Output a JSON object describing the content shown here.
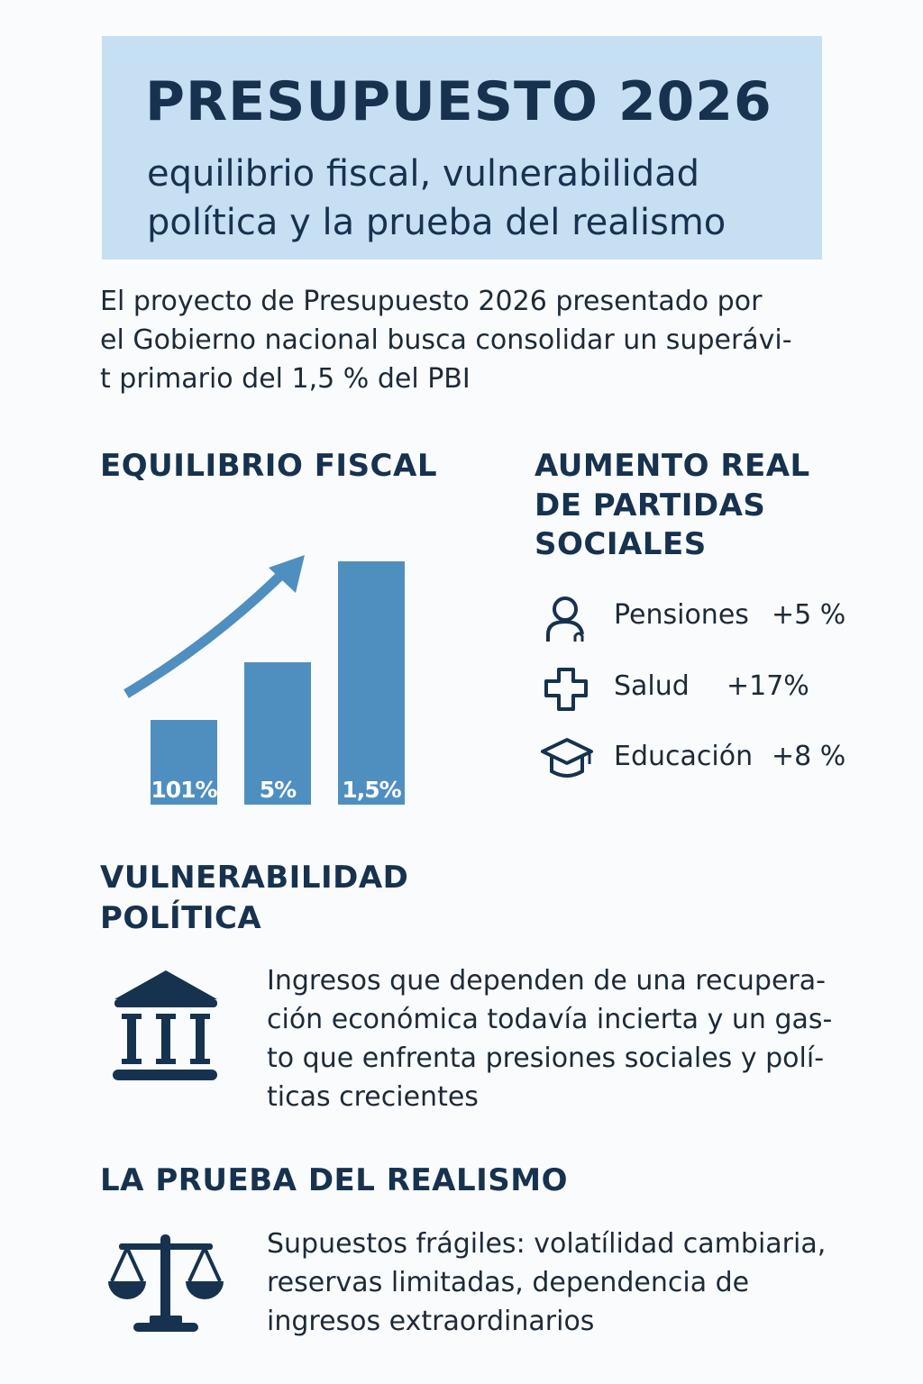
{
  "header": {
    "title": "PRESUPUESTO 2026",
    "subtitle_lines": [
      "equilibrio fiscal, vulnerabilidad",
      "política y la prueba del realismo"
    ]
  },
  "intro": {
    "lines": [
      "El proyecto de Presupuesto 2026 presentado por",
      "el Gobierno nacional busca consolidar un superávi-",
      "t primario del 1,5 % del PBI"
    ]
  },
  "equilibrio": {
    "heading": "EQUILIBRIO FISCAL",
    "arrow_icon": "trend-up-arrow-icon"
  },
  "chart_data": {
    "type": "bar",
    "bar_labels": [
      "101%",
      "5%",
      "1,5%"
    ],
    "trend": "increasing",
    "bar_color": "#4f8fc0"
  },
  "social": {
    "heading_lines": [
      "AUMENTO REAL",
      "DE PARTIDAS",
      "SOCIALES"
    ],
    "items": [
      {
        "icon": "person-icon",
        "label": "Pensiones",
        "value": "+5 %"
      },
      {
        "icon": "medical-cross-icon",
        "label": "Salud",
        "value": "+17%"
      },
      {
        "icon": "graduation-cap-icon",
        "label": "Educación",
        "value": "+8 %"
      }
    ]
  },
  "vulnerabilidad": {
    "heading_lines": [
      "VULNERABILIDAD",
      "POLÍTICA"
    ],
    "icon": "government-building-icon",
    "lines": [
      "Ingresos que dependen de una recupera-",
      "ción económica todavía incierta y un gas-",
      "to que enfrenta presiones sociales y polí-",
      "ticas crecientes"
    ]
  },
  "realismo": {
    "heading": "LA PRUEBA DEL REALISMO",
    "icon": "balance-scale-icon",
    "lines": [
      "Supuestos frágiles: volatílidad cambiaria,",
      "reservas limitadas, dependencia de",
      "ingresos extraordinarios"
    ]
  },
  "colors": {
    "navy": "#16324f",
    "header_bg": "#c6dff3",
    "accent": "#4f8fc0",
    "background": "#fafbfc"
  }
}
